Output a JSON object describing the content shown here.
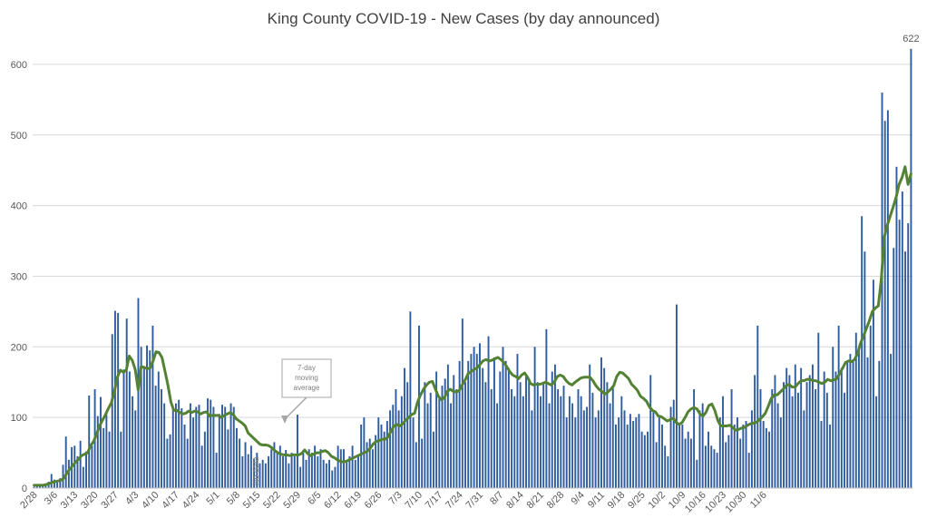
{
  "chart_data": {
    "type": "bar",
    "title": "King County COVID-19 - New Cases (by day announced)",
    "ylim": [
      0,
      650
    ],
    "y_ticks": [
      0,
      100,
      200,
      300,
      400,
      500,
      600
    ],
    "x_tick_labels": [
      "2/28",
      "3/6",
      "3/13",
      "3/20",
      "3/27",
      "4/3",
      "4/10",
      "4/17",
      "4/24",
      "5/1",
      "5/8",
      "5/15",
      "5/22",
      "5/29",
      "6/5",
      "6/12",
      "6/19",
      "6/26",
      "7/3",
      "7/10",
      "7/17",
      "7/24",
      "7/31",
      "8/7",
      "8/14",
      "8/21",
      "8/28",
      "9/4",
      "9/11",
      "9/18",
      "9/25",
      "10/2",
      "10/9",
      "10/16",
      "10/23",
      "10/30",
      "11/6"
    ],
    "grid": true,
    "legend": "none",
    "bar_color": "#2E5C9E",
    "line_color": "#548235",
    "series": [
      {
        "type": "bar",
        "values": [
          2,
          3,
          5,
          4,
          6,
          9,
          20,
          12,
          8,
          14,
          33,
          73,
          40,
          58,
          60,
          45,
          67,
          30,
          52,
          131,
          60,
          140,
          102,
          129,
          85,
          107,
          80,
          218,
          251,
          248,
          80,
          168,
          240,
          165,
          130,
          110,
          269,
          200,
          170,
          202,
          195,
          230,
          145,
          165,
          140,
          120,
          70,
          76,
          115,
          120,
          125,
          113,
          90,
          70,
          120,
          100,
          115,
          118,
          60,
          80,
          127,
          125,
          115,
          50,
          105,
          118,
          115,
          83,
          120,
          115,
          85,
          70,
          45,
          65,
          48,
          60,
          42,
          50,
          35,
          40,
          35,
          45,
          55,
          65,
          50,
          60,
          45,
          54,
          35,
          50,
          45,
          104,
          30,
          50,
          40,
          55,
          50,
          60,
          45,
          55,
          40,
          35,
          40,
          25,
          30,
          60,
          55,
          55,
          40,
          45,
          60,
          40,
          45,
          90,
          100,
          65,
          70,
          55,
          75,
          100,
          90,
          80,
          95,
          110,
          118,
          140,
          110,
          130,
          170,
          150,
          250,
          100,
          65,
          230,
          70,
          150,
          120,
          135,
          80,
          165,
          130,
          145,
          155,
          175,
          120,
          160,
          140,
          180,
          240,
          150,
          180,
          190,
          200,
          190,
          205,
          170,
          150,
          215,
          140,
          185,
          120,
          165,
          200,
          180,
          170,
          140,
          130,
          190,
          150,
          130,
          160,
          155,
          110,
          200,
          150,
          130,
          150,
          225,
          120,
          165,
          175,
          140,
          130,
          145,
          100,
          130,
          120,
          100,
          140,
          130,
          110,
          115,
          175,
          135,
          100,
          110,
          185,
          170,
          150,
          120,
          145,
          90,
          100,
          130,
          110,
          90,
          105,
          95,
          100,
          105,
          80,
          75,
          80,
          160,
          110,
          65,
          100,
          90,
          60,
          45,
          115,
          125,
          260,
          90,
          90,
          70,
          80,
          70,
          140,
          40,
          110,
          120,
          60,
          80,
          60,
          55,
          50,
          100,
          130,
          65,
          75,
          140,
          90,
          100,
          70,
          90,
          95,
          50,
          110,
          160,
          230,
          140,
          95,
          85,
          80,
          140,
          160,
          120,
          100,
          150,
          170,
          160,
          130,
          175,
          135,
          170,
          110,
          150,
          160,
          175,
          140,
          220,
          95,
          165,
          135,
          90,
          200,
          165,
          230,
          170,
          135,
          180,
          190,
          180,
          220,
          200,
          385,
          335,
          185,
          230,
          295,
          130,
          180,
          560,
          520,
          535,
          190,
          340,
          455,
          380,
          420,
          335,
          375,
          622
        ]
      },
      {
        "type": "line",
        "name": "7-day moving average",
        "values": [
          4,
          4,
          4,
          4,
          5,
          6,
          8,
          9,
          10,
          11,
          14,
          21,
          27,
          32,
          37,
          41,
          46,
          48,
          50,
          60,
          66,
          76,
          88,
          96,
          104,
          113,
          121,
          137,
          157,
          167,
          164,
          167,
          187,
          181,
          168,
          139,
          172,
          171,
          169,
          170,
          180,
          193,
          192,
          185,
          166,
          146,
          122,
          110,
          110,
          107,
          105,
          106,
          109,
          107,
          109,
          108,
          105,
          107,
          108,
          102,
          103,
          103,
          103,
          100,
          103,
          105,
          107,
          104,
          98,
          95,
          92,
          88,
          78,
          74,
          70,
          66,
          62,
          61,
          61,
          60,
          57,
          53,
          50,
          48,
          47,
          47,
          46,
          47,
          47,
          47,
          49,
          54,
          49,
          46,
          48,
          50,
          50,
          52,
          53,
          50,
          45,
          43,
          40,
          38,
          37,
          38,
          40,
          42,
          44,
          46,
          48,
          50,
          52,
          56,
          62,
          66,
          67,
          69,
          69,
          72,
          80,
          88,
          90,
          88,
          91,
          96,
          100,
          104,
          106,
          122,
          132,
          140,
          146,
          150,
          151,
          140,
          130,
          125,
          128,
          137,
          140,
          137,
          136,
          138,
          146,
          153,
          162,
          165,
          168,
          170,
          175,
          180,
          182,
          180,
          181,
          183,
          185,
          182,
          178,
          172,
          165,
          160,
          158,
          155,
          160,
          163,
          157,
          148,
          146,
          147,
          147,
          148,
          150,
          148,
          146,
          150,
          158,
          160,
          158,
          152,
          148,
          146,
          150,
          153,
          156,
          157,
          157,
          157,
          152,
          145,
          140,
          137,
          133,
          136,
          140,
          145,
          158,
          164,
          163,
          159,
          155,
          147,
          143,
          138,
          130,
          127,
          123,
          115,
          110,
          108,
          102,
          101,
          98,
          95,
          97,
          99,
          93,
          90,
          93,
          100,
          108,
          112,
          114,
          112,
          105,
          102,
          107,
          117,
          119,
          110,
          96,
          88,
          88,
          88,
          89,
          86,
          82,
          83,
          85,
          86,
          89,
          91,
          92,
          93,
          97,
          101,
          106,
          116,
          127,
          132,
          132,
          136,
          140,
          145,
          147,
          143,
          143,
          148,
          152,
          152,
          154,
          154,
          152,
          152,
          150,
          148,
          150,
          154,
          152,
          153,
          155,
          162,
          170,
          178,
          180,
          179,
          182,
          190,
          205,
          215,
          226,
          237,
          250,
          255,
          258,
          295,
          355,
          372,
          385,
          398,
          412,
          430,
          440,
          455,
          430,
          445
        ]
      }
    ],
    "data_labels": [
      {
        "text": "622"
      }
    ],
    "annotations": [
      {
        "text_lines": [
          "7-day",
          "moving",
          "average"
        ]
      },
      {
        "text": "No data"
      }
    ]
  }
}
